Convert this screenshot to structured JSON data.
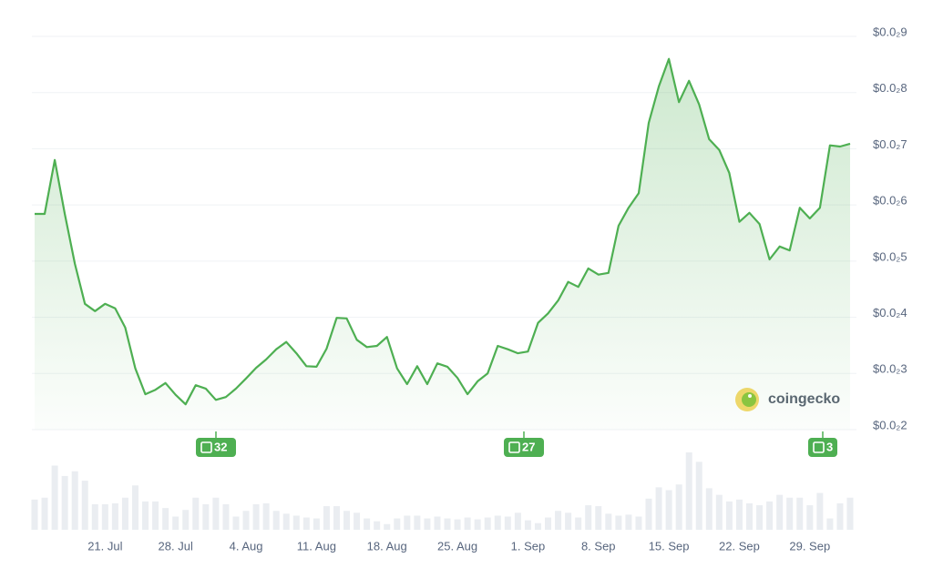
{
  "chart_data": {
    "type": "line",
    "categories": [
      null,
      null,
      null,
      null,
      null,
      null,
      null,
      "21. Jul",
      null,
      null,
      null,
      null,
      null,
      null,
      "28. Jul",
      null,
      null,
      null,
      null,
      null,
      null,
      "4. Aug",
      null,
      null,
      null,
      null,
      null,
      null,
      "11. Aug",
      null,
      null,
      null,
      null,
      null,
      null,
      "18. Aug",
      null,
      null,
      null,
      null,
      null,
      null,
      "25. Aug",
      null,
      null,
      null,
      null,
      null,
      null,
      "1. Sep",
      null,
      null,
      null,
      null,
      null,
      null,
      "8. Sep",
      null,
      null,
      null,
      null,
      null,
      null,
      "15. Sep",
      null,
      null,
      null,
      null,
      null,
      null,
      "22. Sep",
      null,
      null,
      null,
      null,
      null,
      null,
      "29. Sep",
      null,
      null,
      null,
      null
    ],
    "values": [
      0.00584,
      0.00584,
      0.0068,
      0.00584,
      0.00495,
      0.00424,
      0.00411,
      0.00424,
      0.00416,
      0.00382,
      0.00309,
      0.00263,
      0.00271,
      0.00283,
      0.00262,
      0.00245,
      0.00279,
      0.00273,
      0.00253,
      0.00258,
      0.00273,
      0.00291,
      0.0031,
      0.00325,
      0.00343,
      0.00356,
      0.00336,
      0.00313,
      0.00312,
      0.00344,
      0.00399,
      0.00398,
      0.0036,
      0.00347,
      0.00349,
      0.00365,
      0.00309,
      0.00281,
      0.00313,
      0.00281,
      0.00318,
      0.00312,
      0.00292,
      0.00263,
      0.00286,
      0.003,
      0.00349,
      0.00343,
      0.00336,
      0.00339,
      0.0039,
      0.00407,
      0.0043,
      0.00463,
      0.00454,
      0.00487,
      0.00476,
      0.00479,
      0.00563,
      0.00595,
      0.00621,
      0.00746,
      0.00811,
      0.0086,
      0.00783,
      0.00821,
      0.00779,
      0.00717,
      0.00698,
      0.00657,
      0.0057,
      0.00586,
      0.00566,
      0.00503,
      0.00526,
      0.00519,
      0.00595,
      0.00576,
      0.00595,
      0.00706,
      0.00704,
      0.00709
    ],
    "color": "#4eaf52",
    "volume_values": [
      32,
      34,
      68,
      57,
      62,
      52,
      27,
      27,
      28,
      34,
      47,
      30,
      30,
      23,
      14,
      21,
      34,
      27,
      34,
      27,
      14,
      20,
      27,
      28,
      20,
      17,
      15,
      13,
      12,
      25,
      25,
      20,
      18,
      12,
      9,
      6,
      12,
      15,
      15,
      12,
      14,
      12,
      11,
      13,
      11,
      13,
      15,
      14,
      18,
      10,
      7,
      13,
      20,
      18,
      13,
      26,
      25,
      17,
      15,
      16,
      14,
      33,
      45,
      42,
      48,
      82,
      72,
      44,
      37,
      30,
      32,
      28,
      26,
      30,
      37,
      34,
      34,
      26,
      39,
      12,
      28,
      34
    ],
    "volume_color": "#eaedf1",
    "ylim": [
      0.002,
      0.009
    ],
    "yticks": [
      {
        "value": 0.002,
        "label": "$0.0₂2"
      },
      {
        "value": 0.003,
        "label": "$0.0₂3"
      },
      {
        "value": 0.004,
        "label": "$0.0₂4"
      },
      {
        "value": 0.005,
        "label": "$0.0₂5"
      },
      {
        "value": 0.006,
        "label": "$0.0₂6"
      },
      {
        "value": 0.007,
        "label": "$0.0₂7"
      },
      {
        "value": 0.008,
        "label": "$0.0₂8"
      },
      {
        "value": 0.009,
        "label": "$0.0₂9"
      }
    ],
    "grid": true,
    "news_counts": [
      32,
      27,
      3
    ],
    "watermark": "coingecko"
  }
}
